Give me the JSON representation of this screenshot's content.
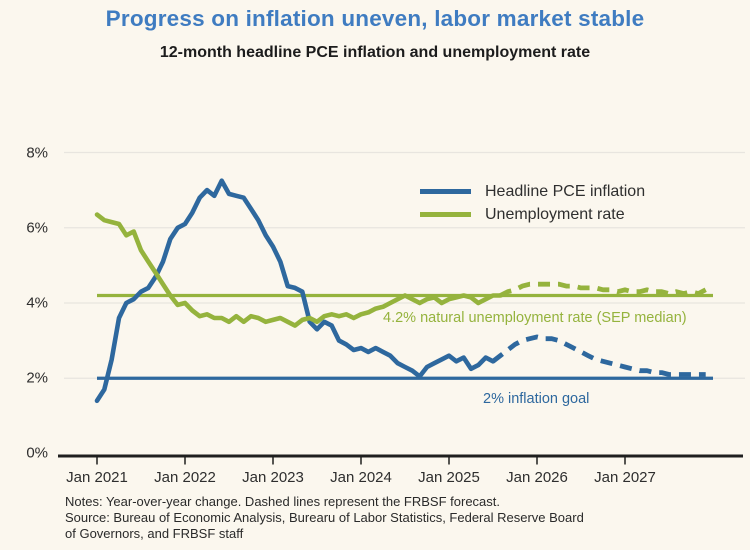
{
  "header": {
    "title": "Progress on inflation uneven, labor market stable",
    "subtitle": "12-month headline PCE inflation and unemployment rate"
  },
  "colors": {
    "title_blue": "#3f7cc1",
    "pce_blue": "#2e689e",
    "unemployment_green": "#95b33d",
    "background": "#fbf7ee",
    "gridline": "#e8e5df",
    "axis": "#1f1f1f"
  },
  "notes": {
    "lines": [
      "Notes: Year-over-year change. Dashed lines represent the FRBSF forecast.",
      "Source: Bureau of Economic Analysis, Burearu of Labor Statistics, Federal Reserve Board",
      "of Governors, and FRBSF staff"
    ]
  },
  "chart_data": {
    "type": "line",
    "title": "Progress on inflation uneven, labor market stable",
    "subtitle": "12-month headline PCE inflation and unemployment rate",
    "x_start": "Jan 2021",
    "x_end": "Dec 2027",
    "x_frequency": "monthly",
    "x_tick_labels": [
      "Jan 2021",
      "Jan 2022",
      "Jan 2023",
      "Jan 2024",
      "Jan 2025",
      "Jan 2026",
      "Jan 2027"
    ],
    "y_tick_labels_top_to_bottom": [
      "8%",
      "6%",
      "4%",
      "2%",
      "0%"
    ],
    "ylim": [
      0,
      8
    ],
    "gridline_values": [
      2,
      4,
      6,
      8
    ],
    "legend_position": "upper right",
    "forecast_style": "dashed",
    "series": [
      {
        "id": "headline-pce-inflation",
        "name": "Headline PCE inflation",
        "color": "#2e689e",
        "units": "percent",
        "solid_points": 55,
        "solid_through": "Jul 2025",
        "values": [
          1.4,
          1.7,
          2.5,
          3.6,
          4.0,
          4.1,
          4.3,
          4.4,
          4.7,
          5.1,
          5.7,
          6.0,
          6.1,
          6.4,
          6.8,
          7.0,
          6.85,
          7.25,
          6.9,
          6.85,
          6.8,
          6.5,
          6.2,
          5.8,
          5.5,
          5.1,
          4.45,
          4.4,
          4.3,
          3.5,
          3.3,
          3.5,
          3.4,
          3.0,
          2.9,
          2.75,
          2.8,
          2.7,
          2.8,
          2.7,
          2.6,
          2.4,
          2.3,
          2.2,
          2.05,
          2.3,
          2.4,
          2.5,
          2.6,
          2.45,
          2.55,
          2.25,
          2.35,
          2.55,
          2.45,
          2.6,
          2.75,
          2.9,
          3.0,
          3.05,
          3.1,
          3.05,
          3.05,
          3.0,
          2.9,
          2.8,
          2.7,
          2.6,
          2.5,
          2.45,
          2.4,
          2.35,
          2.3,
          2.25,
          2.2,
          2.2,
          2.15,
          2.15,
          2.1,
          2.1,
          2.1,
          2.1,
          2.1,
          2.1
        ]
      },
      {
        "id": "unemployment-rate",
        "name": "Unemployment rate",
        "color": "#95b33d",
        "units": "percent",
        "solid_points": 56,
        "solid_through": "Aug 2025",
        "values": [
          6.35,
          6.2,
          6.15,
          6.1,
          5.8,
          5.9,
          5.4,
          5.1,
          4.8,
          4.5,
          4.2,
          3.95,
          4.0,
          3.8,
          3.65,
          3.7,
          3.6,
          3.6,
          3.5,
          3.65,
          3.5,
          3.65,
          3.6,
          3.5,
          3.55,
          3.6,
          3.5,
          3.4,
          3.55,
          3.6,
          3.5,
          3.65,
          3.7,
          3.65,
          3.7,
          3.6,
          3.7,
          3.75,
          3.85,
          3.9,
          4.0,
          4.1,
          4.2,
          4.1,
          4.0,
          4.1,
          4.15,
          4.0,
          4.1,
          4.15,
          4.2,
          4.15,
          4.0,
          4.1,
          4.2,
          4.2,
          4.3,
          4.35,
          4.45,
          4.5,
          4.5,
          4.5,
          4.5,
          4.5,
          4.45,
          4.45,
          4.4,
          4.4,
          4.4,
          4.35,
          4.35,
          4.3,
          4.35,
          4.3,
          4.3,
          4.35,
          4.3,
          4.3,
          4.25,
          4.3,
          4.25,
          4.3,
          4.25,
          4.35
        ]
      }
    ],
    "reference_lines": [
      {
        "id": "inflation-goal",
        "label": "2% inflation goal",
        "value": 2.0,
        "color": "#2e689e"
      },
      {
        "id": "natural-unemployment-rate",
        "label": "4.2% natural unemployment rate (SEP median)",
        "value": 4.2,
        "color": "#95b33d"
      }
    ]
  }
}
